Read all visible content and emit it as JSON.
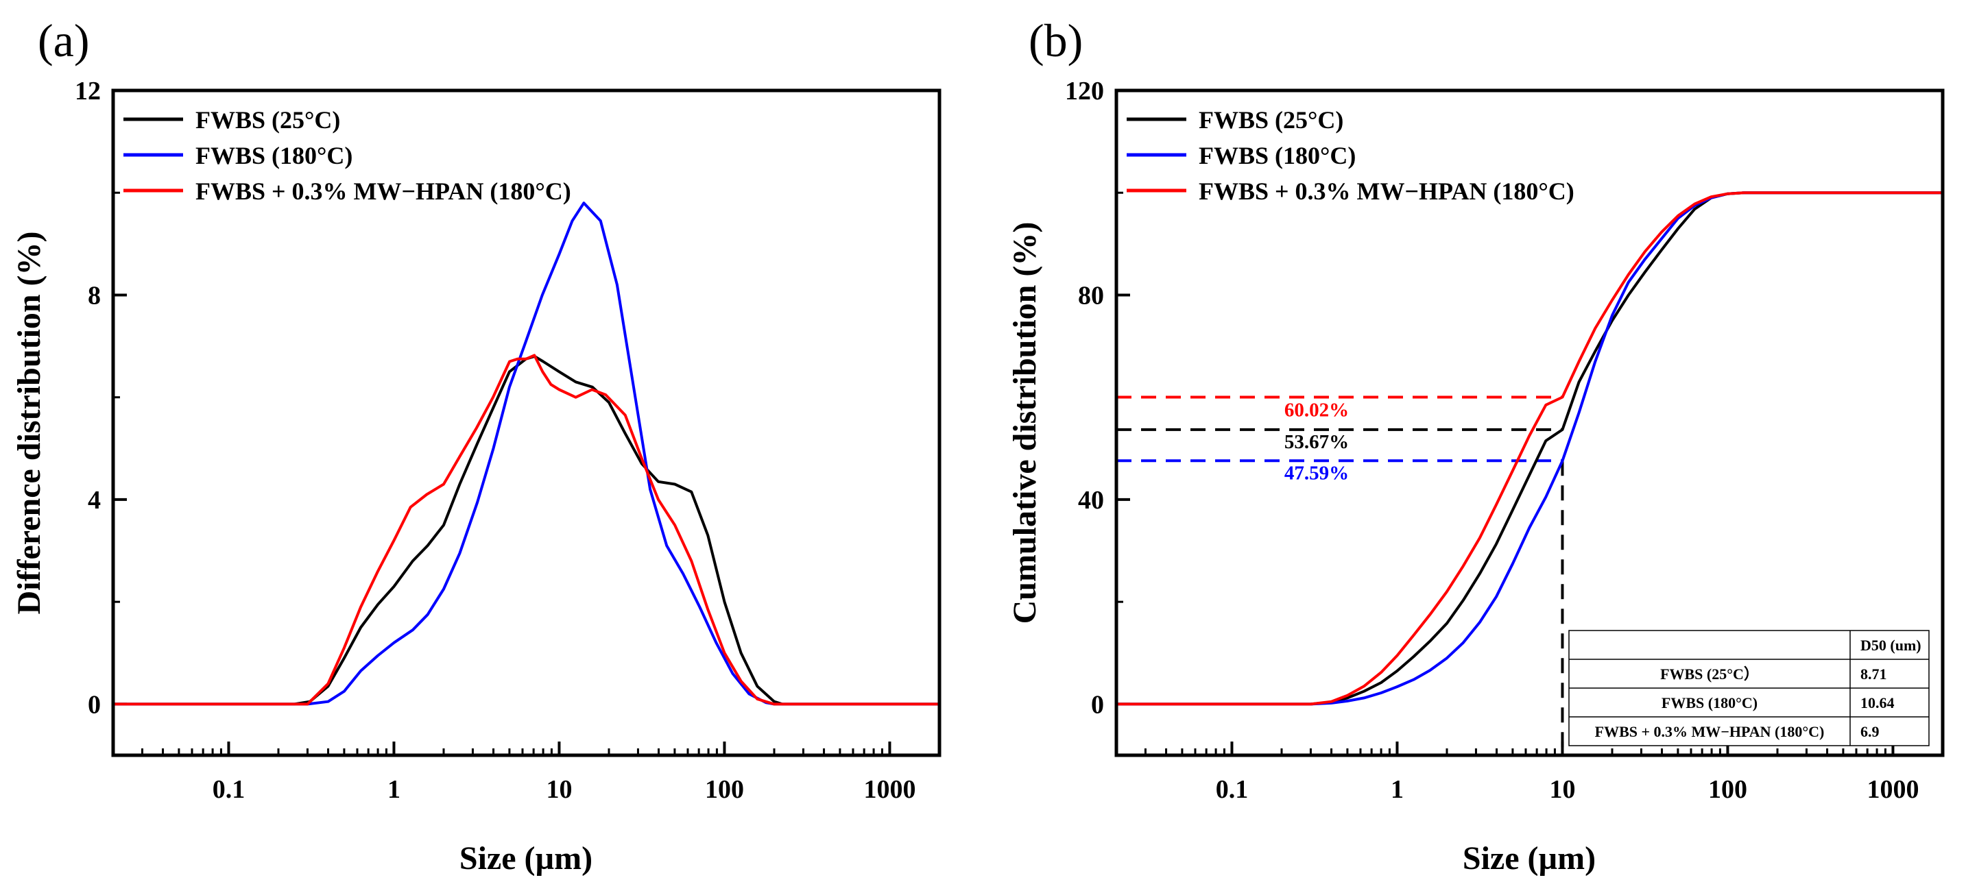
{
  "chart_data": [
    {
      "panel_label": "(a)",
      "type": "line",
      "xlabel": "Size (µm)",
      "ylabel": "Difference distribution (%)",
      "xscale": "log",
      "xlim": [
        0.02,
        2000
      ],
      "ylim": [
        -1,
        12
      ],
      "xticks": [
        0.1,
        1,
        10,
        100,
        1000
      ],
      "xtick_labels": [
        "0.1",
        "1",
        "10",
        "100",
        "1000"
      ],
      "yticks": [
        0,
        4,
        8,
        12
      ],
      "ytick_labels": [
        "0",
        "4",
        "8",
        "12"
      ],
      "legend_position": "top-left",
      "series": [
        {
          "name": "FWBS (25°C)",
          "color": "#000000",
          "x": [
            0.02,
            0.25,
            0.31,
            0.4,
            0.5,
            0.63,
            0.8,
            1.0,
            1.3,
            1.6,
            2.0,
            2.5,
            3.2,
            4.0,
            5.0,
            6.3,
            7.1,
            8.0,
            10.0,
            12.6,
            15.9,
            20.0,
            25.0,
            31.6,
            39.8,
            50.1,
            63.1,
            79.4,
            100,
            126,
            158,
            200,
            224,
            251,
            2000
          ],
          "values": [
            0,
            0,
            0.05,
            0.35,
            0.9,
            1.5,
            1.95,
            2.3,
            2.8,
            3.1,
            3.5,
            4.3,
            5.1,
            5.8,
            6.5,
            6.75,
            6.8,
            6.7,
            6.5,
            6.3,
            6.2,
            5.9,
            5.3,
            4.7,
            4.35,
            4.3,
            4.15,
            3.3,
            2.0,
            1.0,
            0.35,
            0.05,
            0,
            0,
            0
          ]
        },
        {
          "name": "FWBS (180°C)",
          "color": "#0000ff",
          "x": [
            0.02,
            0.3,
            0.4,
            0.5,
            0.63,
            0.8,
            1.0,
            1.3,
            1.6,
            2.0,
            2.5,
            3.2,
            4.0,
            5.0,
            6.3,
            7.9,
            10.0,
            12.0,
            14.1,
            17.8,
            22.4,
            28.2,
            35.5,
            44.7,
            56.2,
            70.8,
            89.1,
            112,
            141,
            178,
            200,
            2000
          ],
          "values": [
            0,
            0,
            0.05,
            0.25,
            0.65,
            0.95,
            1.2,
            1.45,
            1.75,
            2.25,
            2.95,
            3.95,
            5.0,
            6.2,
            7.1,
            8.0,
            8.8,
            9.45,
            9.8,
            9.45,
            8.2,
            6.2,
            4.2,
            3.1,
            2.55,
            1.9,
            1.2,
            0.6,
            0.2,
            0.03,
            0,
            0
          ]
        },
        {
          "name": "FWBS + 0.3% MW−HPAN (180°C)",
          "color": "#ff0000",
          "x": [
            0.02,
            0.3,
            0.4,
            0.5,
            0.63,
            0.8,
            1.0,
            1.26,
            1.58,
            2.0,
            2.51,
            3.16,
            3.98,
            5.01,
            5.62,
            6.31,
            7.08,
            7.94,
            8.91,
            10.0,
            12.6,
            15.8,
            19.1,
            25.1,
            31.6,
            39.8,
            50.1,
            63.1,
            79.4,
            100,
            126,
            158,
            200,
            2000
          ],
          "values": [
            0,
            0,
            0.4,
            1.1,
            1.9,
            2.6,
            3.2,
            3.85,
            4.1,
            4.3,
            4.85,
            5.4,
            6.0,
            6.7,
            6.75,
            6.75,
            6.82,
            6.5,
            6.25,
            6.15,
            6.0,
            6.15,
            6.05,
            5.65,
            4.8,
            4.0,
            3.5,
            2.8,
            1.85,
            1.0,
            0.45,
            0.1,
            0,
            0
          ]
        }
      ]
    },
    {
      "panel_label": "(b)",
      "type": "line",
      "xlabel": "Size (µm)",
      "ylabel": "Cumulative distribution (%)",
      "xscale": "log",
      "xlim": [
        0.02,
        2000
      ],
      "ylim": [
        -10,
        120
      ],
      "xticks": [
        0.1,
        1,
        10,
        100,
        1000
      ],
      "xtick_labels": [
        "0.1",
        "1",
        "10",
        "100",
        "1000"
      ],
      "yticks": [
        0,
        40,
        80,
        120
      ],
      "ytick_labels": [
        "0",
        "40",
        "80",
        "120"
      ],
      "legend_position": "top-left",
      "series": [
        {
          "name": "FWBS (25°C)",
          "color": "#000000",
          "x": [
            0.02,
            0.3,
            0.4,
            0.5,
            0.63,
            0.8,
            1.0,
            1.26,
            1.58,
            2.0,
            2.51,
            3.16,
            3.98,
            5.01,
            6.31,
            7.94,
            10.0,
            12.6,
            15.8,
            20.0,
            25.1,
            31.6,
            39.8,
            50.1,
            63.1,
            79.4,
            100,
            126,
            158,
            200,
            2000
          ],
          "values": [
            0,
            0,
            0.4,
            1.2,
            2.5,
            4.2,
            6.5,
            9.3,
            12.3,
            15.8,
            20.3,
            25.5,
            31.3,
            38.0,
            44.8,
            51.5,
            53.67,
            63.0,
            69.0,
            75.0,
            80.0,
            84.5,
            88.8,
            93.0,
            96.8,
            99.0,
            99.8,
            100,
            100,
            100,
            100
          ]
        },
        {
          "name": "FWBS (180°C)",
          "color": "#0000ff",
          "x": [
            0.02,
            0.3,
            0.4,
            0.5,
            0.63,
            0.8,
            1.0,
            1.26,
            1.58,
            2.0,
            2.51,
            3.16,
            3.98,
            5.01,
            6.31,
            7.94,
            10.0,
            12.6,
            15.8,
            20.0,
            25.1,
            31.6,
            39.8,
            50.1,
            63.1,
            79.4,
            100,
            126,
            158,
            2000
          ],
          "values": [
            0,
            0,
            0.2,
            0.6,
            1.2,
            2.2,
            3.4,
            4.8,
            6.6,
            9.0,
            12.0,
            16.0,
            21.0,
            27.5,
            34.5,
            40.5,
            47.59,
            57.0,
            67.0,
            76.0,
            82.5,
            87.0,
            91.0,
            95.0,
            97.5,
            99.0,
            99.8,
            100,
            100,
            100
          ]
        },
        {
          "name": "FWBS + 0.3% MW−HPAN (180°C)",
          "color": "#ff0000",
          "x": [
            0.02,
            0.3,
            0.4,
            0.5,
            0.63,
            0.8,
            1.0,
            1.26,
            1.58,
            2.0,
            2.51,
            3.16,
            3.98,
            5.01,
            6.31,
            7.94,
            10.0,
            12.6,
            15.8,
            20.0,
            25.1,
            31.6,
            39.8,
            50.1,
            63.1,
            79.4,
            100,
            126,
            158,
            2000
          ],
          "values": [
            0,
            0,
            0.5,
            1.7,
            3.5,
            6.2,
            9.5,
            13.5,
            17.5,
            22.0,
            27.0,
            32.5,
            39.0,
            45.7,
            52.5,
            58.5,
            60.02,
            67.0,
            73.5,
            79.0,
            84.0,
            88.5,
            92.3,
            95.5,
            97.8,
            99.2,
            99.8,
            100,
            100,
            100
          ]
        }
      ],
      "reference_lines": [
        {
          "y": 60.02,
          "color": "#ff0000",
          "label": "60.02%"
        },
        {
          "y": 53.67,
          "color": "#000000",
          "label": "53.67%"
        },
        {
          "y": 47.59,
          "color": "#0000ff",
          "label": "47.59%"
        }
      ],
      "vertical_reference_x": 10,
      "table": {
        "header": [
          "",
          "D50 (um)"
        ],
        "rows": [
          [
            "FWBS (25°C）",
            "8.71"
          ],
          [
            "FWBS (180°C)",
            "10.64"
          ],
          [
            "FWBS + 0.3% MW−HPAN (180°C)",
            "6.9"
          ]
        ]
      }
    }
  ]
}
